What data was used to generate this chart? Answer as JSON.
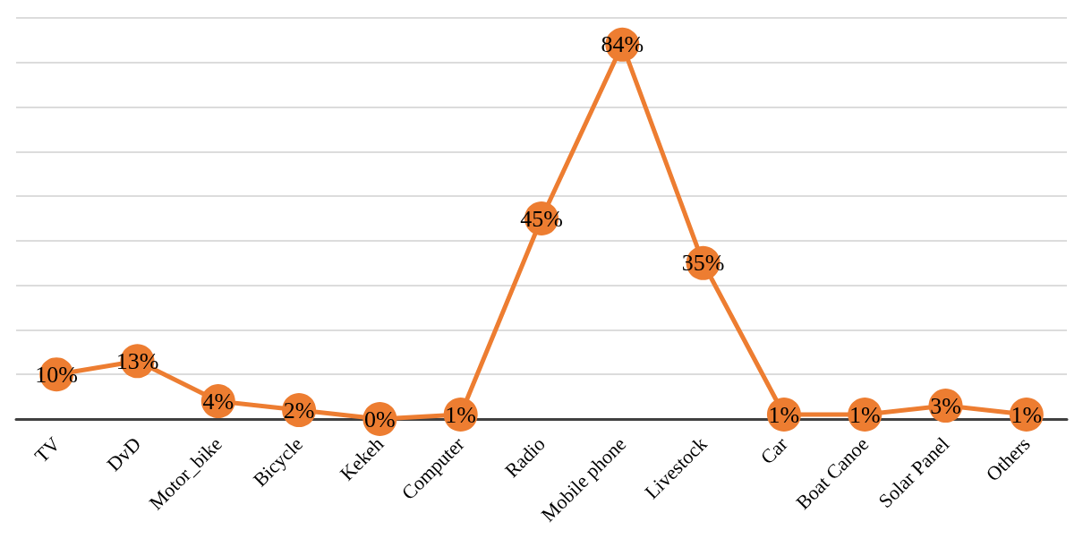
{
  "chart_data": {
    "type": "line",
    "categories": [
      "TV",
      "DvD",
      "Motor_bike",
      "Bicycle",
      "Kekeh",
      "Computer",
      "Radio",
      "Mobile phone",
      "Livestock",
      "Car",
      "Boat Canoe",
      "Solar Panel",
      "Others"
    ],
    "series": [
      {
        "color": "#ed7d31",
        "values": [
          10,
          13,
          4,
          2,
          0,
          1,
          45,
          84,
          35,
          1,
          1,
          3,
          1
        ],
        "value_labels": [
          "10%",
          "13%",
          "4%",
          "2%",
          "0%",
          "1%",
          "45%",
          "84%",
          "35%",
          "1%",
          "1%",
          "3%",
          "1%"
        ]
      }
    ],
    "ylim": [
      0,
      90
    ],
    "yticks": [
      0,
      10,
      20,
      30,
      40,
      50,
      60,
      70,
      80,
      90
    ],
    "grid": "y",
    "tick_labels": "x",
    "marker": "circle",
    "line_style": "solid"
  }
}
